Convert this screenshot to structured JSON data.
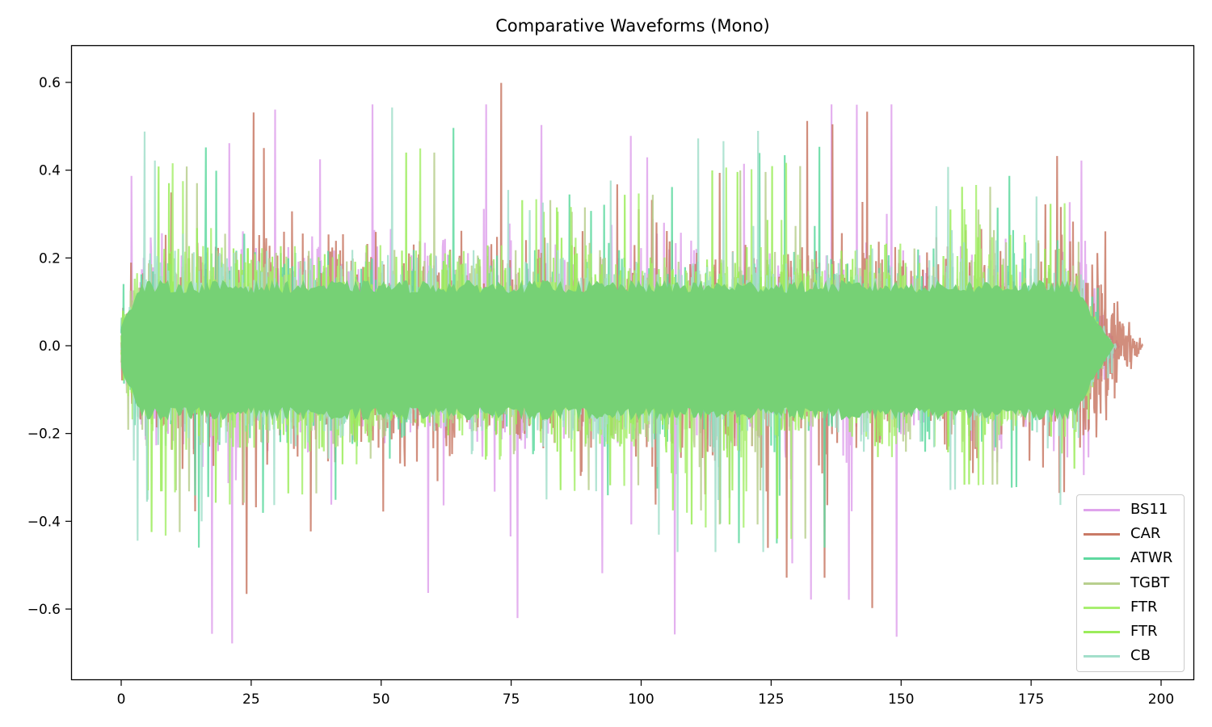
{
  "chart_data": {
    "type": "line",
    "title": "Comparative Waveforms (Mono)",
    "xlabel": "",
    "ylabel": "",
    "xlim": [
      -9.3,
      206.3
    ],
    "ylim": [
      -0.76,
      0.685
    ],
    "x_ticks": [
      0,
      25,
      50,
      75,
      100,
      125,
      150,
      175,
      200
    ],
    "x_tick_labels": [
      "0",
      "25",
      "50",
      "75",
      "100",
      "125",
      "150",
      "175",
      "200"
    ],
    "y_ticks": [
      -0.6,
      -0.4,
      -0.2,
      0.0,
      0.2,
      0.4,
      0.6
    ],
    "y_tick_labels": [
      "−0.6",
      "−0.4",
      "−0.2",
      "0.0",
      "0.2",
      "0.4",
      "0.6"
    ],
    "grid": false,
    "legend_position": "lower right",
    "series": [
      {
        "name": "BS11",
        "color": "#dfa3ec",
        "duration": 192,
        "typical_amplitude": 0.22,
        "max": 0.55,
        "min": -0.69
      },
      {
        "name": "CAR",
        "color": "#c97a66",
        "duration": 196.5,
        "typical_amplitude": 0.24,
        "max": 0.62,
        "min": -0.6
      },
      {
        "name": "ATWR",
        "color": "#5fd9a0",
        "duration": 191,
        "typical_amplitude": 0.2,
        "max": 0.51,
        "min": -0.46
      },
      {
        "name": "TGBT",
        "color": "#b8cf8e",
        "duration": 190,
        "typical_amplitude": 0.2,
        "max": 0.45,
        "min": -0.45
      },
      {
        "name": "FTR",
        "color": "#a8ef70",
        "duration": 190,
        "typical_amplitude": 0.21,
        "max": 0.46,
        "min": -0.44
      },
      {
        "name": "FTR",
        "color": "#9bec5a",
        "duration": 190,
        "typical_amplitude": 0.21,
        "max": 0.45,
        "min": -0.44
      },
      {
        "name": "CB",
        "color": "#a3dfcb",
        "duration": 191.5,
        "typical_amplitude": 0.2,
        "max": 0.56,
        "min": -0.47
      }
    ],
    "envelope_fill_color": "#76d175"
  },
  "legend": {
    "items": [
      {
        "label": "BS11",
        "color": "#dfa3ec"
      },
      {
        "label": "CAR",
        "color": "#c97a66"
      },
      {
        "label": "ATWR",
        "color": "#5fd9a0"
      },
      {
        "label": "TGBT",
        "color": "#b8cf8e"
      },
      {
        "label": "FTR",
        "color": "#a8ef70"
      },
      {
        "label": "FTR",
        "color": "#9bec5a"
      },
      {
        "label": "CB",
        "color": "#a3dfcb"
      }
    ]
  }
}
